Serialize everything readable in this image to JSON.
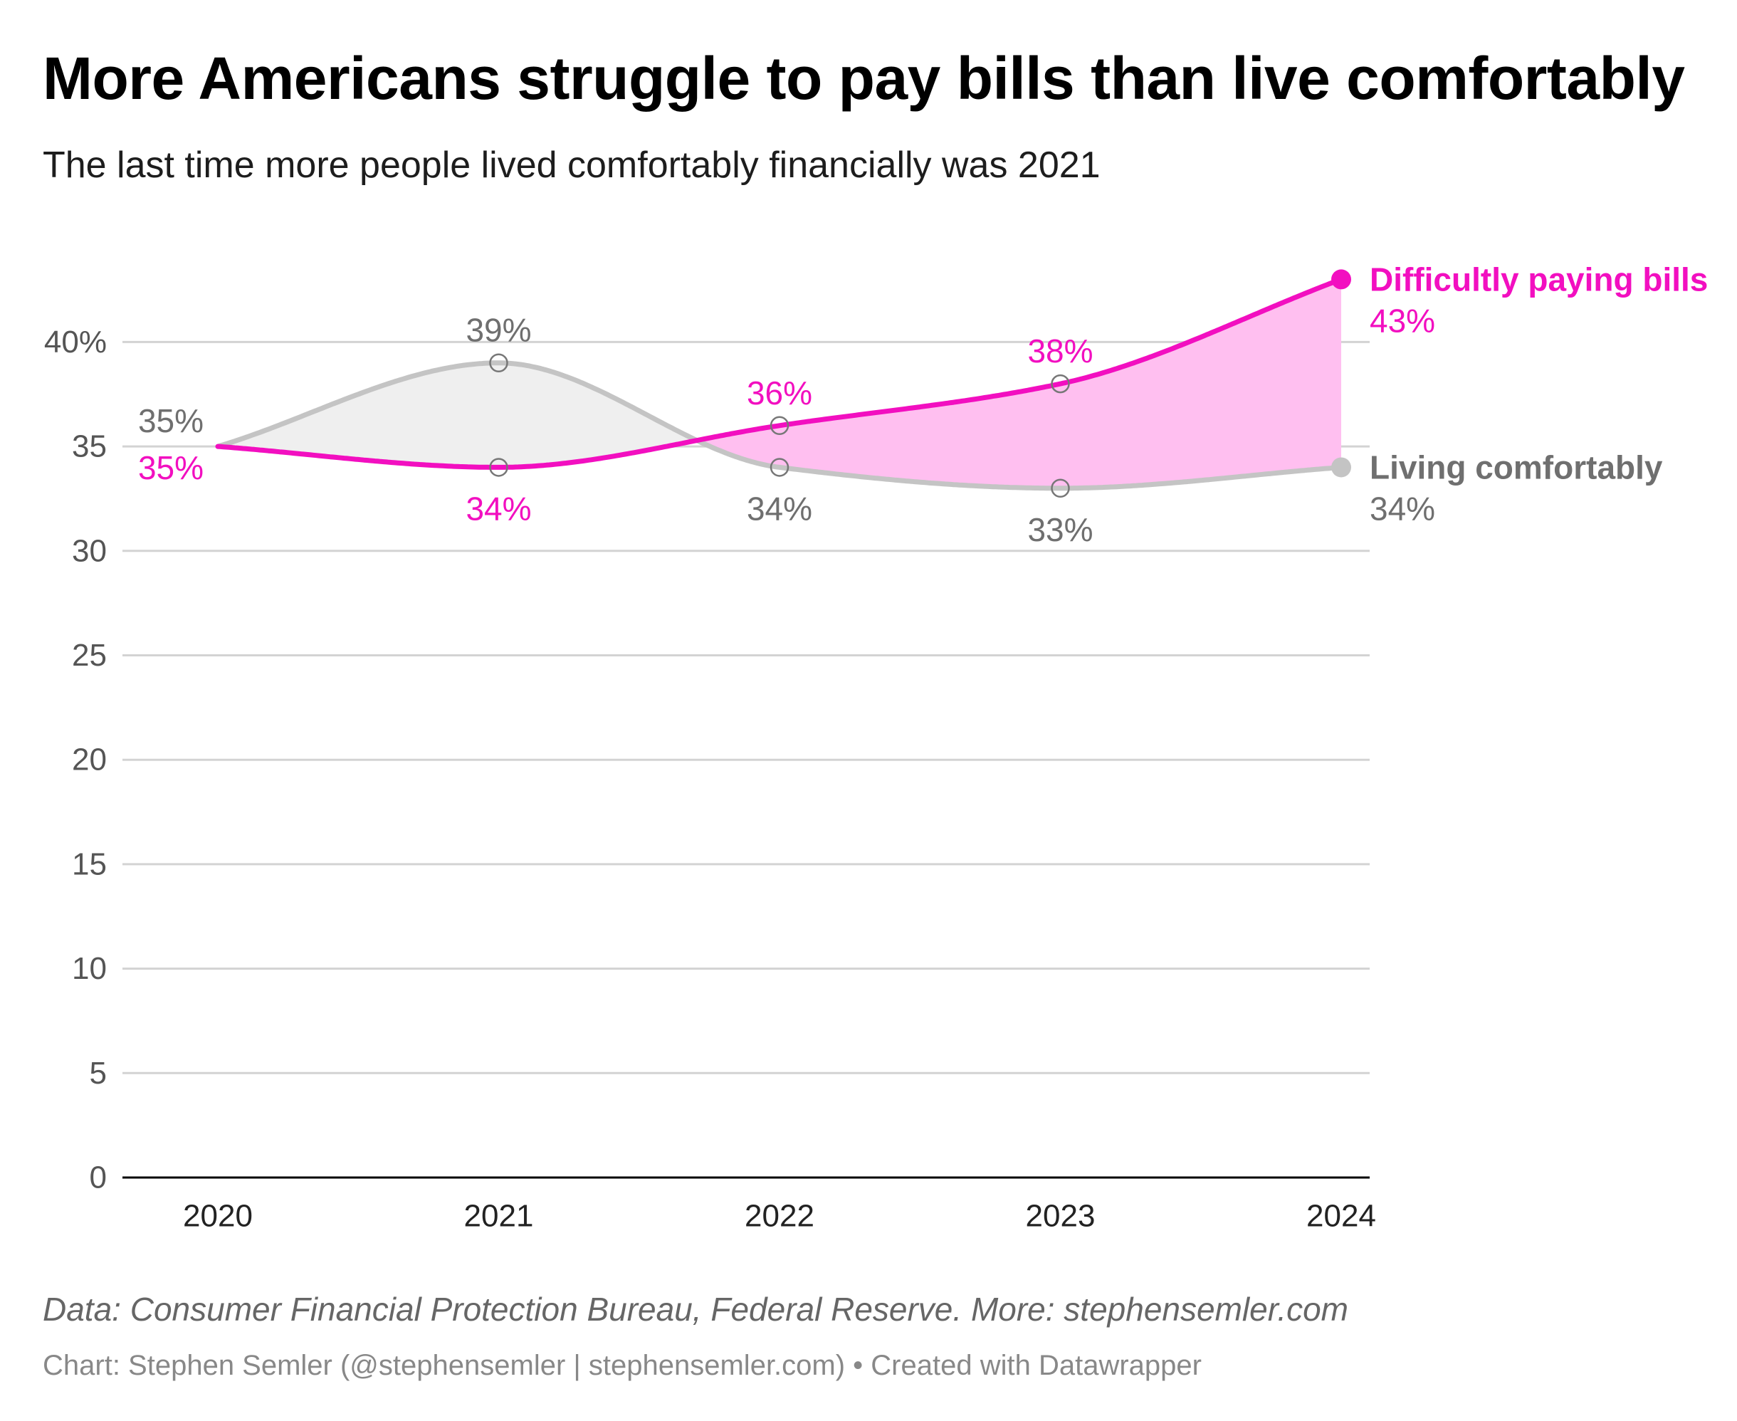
{
  "chart_data": {
    "type": "line",
    "title": "More Americans struggle to pay bills than live comfortably",
    "subtitle": "The last time more people lived comfortably financially was 2021",
    "x": [
      "2020",
      "2021",
      "2022",
      "2023",
      "2024"
    ],
    "yticks": [
      "0",
      "5",
      "10",
      "15",
      "20",
      "25",
      "30",
      "35",
      "40%"
    ],
    "ylim": [
      0,
      43
    ],
    "grid": true,
    "series": [
      {
        "name": "Difficultly paying bills",
        "values": [
          35,
          34,
          36,
          38,
          43
        ],
        "labels": [
          "35%",
          "34%",
          "36%",
          "38%",
          "43%"
        ],
        "color": "#f20fc0",
        "area_color": "#ffbff0"
      },
      {
        "name": "Living comfortably",
        "values": [
          35,
          39,
          34,
          33,
          34
        ],
        "labels": [
          "35%",
          "39%",
          "34%",
          "33%",
          "34%"
        ],
        "color": "#c4c4c4",
        "area_color": "#efefef",
        "label_color": "#6f6f6f"
      }
    ],
    "notes": "Data: Consumer Financial Protection Bureau, Federal Reserve. More: stephensemler.com",
    "byline": "Chart: Stephen Semler (@stephensemler | stephensemler.com) • Created with Datawrapper"
  }
}
